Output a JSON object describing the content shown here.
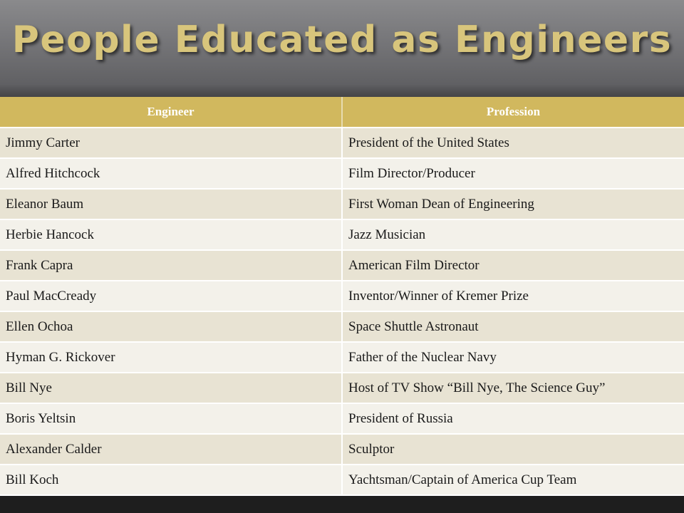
{
  "slide": {
    "title": "People Educated as Engineers"
  },
  "colors": {
    "header_band": "#77777a",
    "title_text": "#d8c57c",
    "table_header": "#d1b85e",
    "row_odd": "#e8e3d3",
    "row_even": "#f3f1ea"
  },
  "table": {
    "columns": [
      "Engineer",
      "Profession"
    ],
    "rows": [
      {
        "engineer": "Jimmy Carter",
        "profession": "President of the United States"
      },
      {
        "engineer": "Alfred Hitchcock",
        "profession": "Film Director/Producer"
      },
      {
        "engineer": "Eleanor Baum",
        "profession": "First Woman Dean of Engineering"
      },
      {
        "engineer": "Herbie Hancock",
        "profession": "Jazz Musician"
      },
      {
        "engineer": "Frank Capra",
        "profession": "American Film Director"
      },
      {
        "engineer": "Paul MacCready",
        "profession": "Inventor/Winner of Kremer Prize"
      },
      {
        "engineer": "Ellen Ochoa",
        "profession": "Space Shuttle Astronaut"
      },
      {
        "engineer": "Hyman G. Rickover",
        "profession": "Father of the Nuclear Navy"
      },
      {
        "engineer": "Bill Nye",
        "profession": "Host of TV Show “Bill Nye, The Science Guy”"
      },
      {
        "engineer": "Boris Yeltsin",
        "profession": "President of Russia"
      },
      {
        "engineer": "Alexander Calder",
        "profession": "Sculptor"
      },
      {
        "engineer": "Bill Koch",
        "profession": "Yachtsman/Captain of America Cup Team"
      }
    ]
  }
}
